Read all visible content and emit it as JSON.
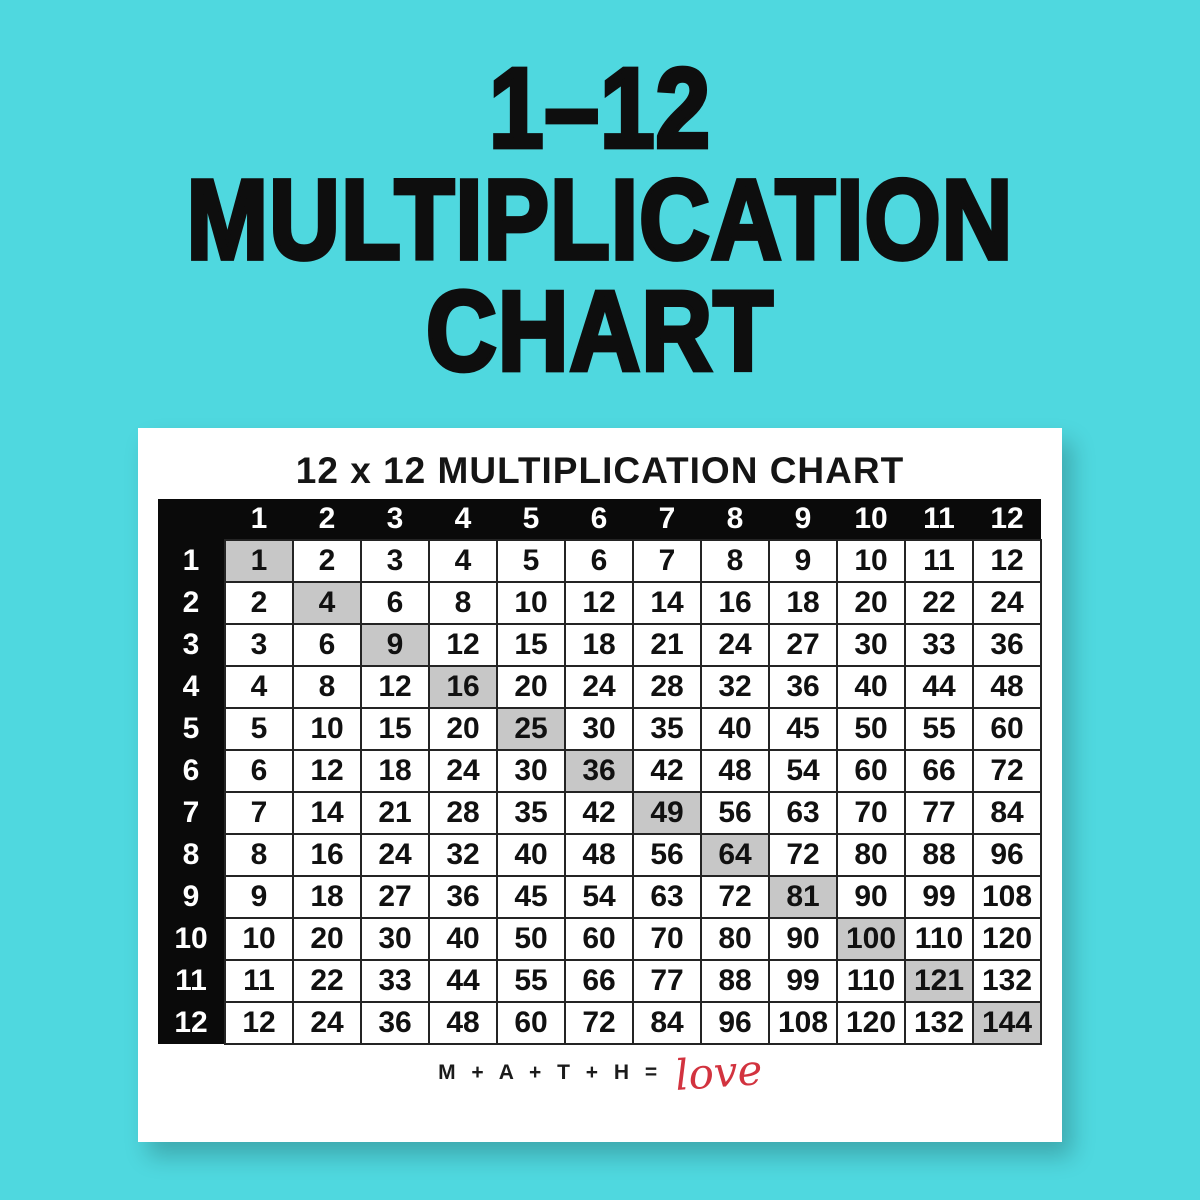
{
  "page": {
    "title_lines": [
      "1–12",
      "MULTIPLICATION",
      "CHART"
    ]
  },
  "card": {
    "heading": "12 x 12 MULTIPLICATION CHART",
    "footer": {
      "math_text": "M + A + T + H =",
      "love_text": "love"
    }
  },
  "colors": {
    "background": "#4FD8DF",
    "title_text": "#0E0E0E",
    "card_bg": "#FFFFFF",
    "table_header_bg": "#0A0A0A",
    "table_header_text": "#FFFFFF",
    "cell_border": "#242424",
    "diagonal_highlight": "#C7C7C7",
    "love_red": "#D2333F"
  },
  "table": {
    "col_headers": [
      "1",
      "2",
      "3",
      "4",
      "5",
      "6",
      "7",
      "8",
      "9",
      "10",
      "11",
      "12"
    ],
    "rows": [
      {
        "label": "1",
        "values": [
          1,
          2,
          3,
          4,
          5,
          6,
          7,
          8,
          9,
          10,
          11,
          12
        ]
      },
      {
        "label": "2",
        "values": [
          2,
          4,
          6,
          8,
          10,
          12,
          14,
          16,
          18,
          20,
          22,
          24
        ]
      },
      {
        "label": "3",
        "values": [
          3,
          6,
          9,
          12,
          15,
          18,
          21,
          24,
          27,
          30,
          33,
          36
        ]
      },
      {
        "label": "4",
        "values": [
          4,
          8,
          12,
          16,
          20,
          24,
          28,
          32,
          36,
          40,
          44,
          48
        ]
      },
      {
        "label": "5",
        "values": [
          5,
          10,
          15,
          20,
          25,
          30,
          35,
          40,
          45,
          50,
          55,
          60
        ]
      },
      {
        "label": "6",
        "values": [
          6,
          12,
          18,
          24,
          30,
          36,
          42,
          48,
          54,
          60,
          66,
          72
        ]
      },
      {
        "label": "7",
        "values": [
          7,
          14,
          21,
          28,
          35,
          42,
          49,
          56,
          63,
          70,
          77,
          84
        ]
      },
      {
        "label": "8",
        "values": [
          8,
          16,
          24,
          32,
          40,
          48,
          56,
          64,
          72,
          80,
          88,
          96
        ]
      },
      {
        "label": "9",
        "values": [
          9,
          18,
          27,
          36,
          45,
          54,
          63,
          72,
          81,
          90,
          99,
          108
        ]
      },
      {
        "label": "10",
        "values": [
          10,
          20,
          30,
          40,
          50,
          60,
          70,
          80,
          90,
          100,
          110,
          120
        ]
      },
      {
        "label": "11",
        "values": [
          11,
          22,
          33,
          44,
          55,
          66,
          77,
          88,
          99,
          110,
          121,
          132
        ]
      },
      {
        "label": "12",
        "values": [
          12,
          24,
          36,
          48,
          60,
          72,
          84,
          96,
          108,
          120,
          132,
          144
        ]
      }
    ],
    "highlight_rule": "diagonal perfect-square cells shaded gray"
  }
}
